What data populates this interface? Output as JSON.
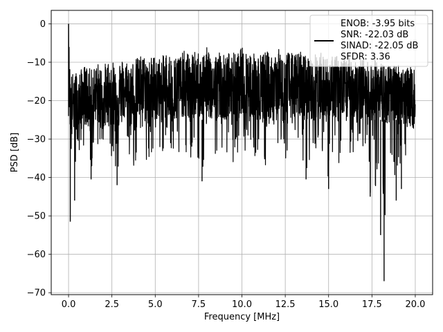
{
  "chart_data": {
    "type": "line",
    "title": "",
    "xlabel": "Frequency [MHz]",
    "ylabel": "PSD [dB]",
    "xlim": [
      -1.0,
      21.0
    ],
    "ylim": [
      -70.5,
      3.5
    ],
    "xticks": [
      0.0,
      2.5,
      5.0,
      7.5,
      10.0,
      12.5,
      15.0,
      17.5,
      20.0
    ],
    "xtick_labels": [
      "0.0",
      "2.5",
      "5.0",
      "7.5",
      "10.0",
      "12.5",
      "15.0",
      "17.5",
      "20.0"
    ],
    "yticks": [
      0,
      -10,
      -20,
      -30,
      -40,
      -50,
      -60,
      -70
    ],
    "ytick_labels": [
      "0",
      "−10",
      "−20",
      "−30",
      "−40",
      "−50",
      "−60",
      "−70"
    ],
    "grid": true,
    "legend_position": "top-right",
    "legend_lines": [
      "ENOB: -3.95 bits",
      "SNR: -22.03 dB",
      "SINAD: -22.05 dB",
      "SFDR: 3.36"
    ],
    "series": [
      {
        "color": "#000000",
        "x": [
          0.0,
          0.05,
          0.1,
          0.2,
          0.35,
          0.55,
          0.7,
          0.9,
          1.1,
          1.3,
          1.6,
          1.9,
          2.2,
          2.5,
          2.8,
          3.2,
          3.5,
          3.9,
          4.2,
          4.6,
          5.0,
          5.3,
          5.7,
          6.0,
          6.3,
          6.7,
          7.0,
          7.4,
          7.7,
          8.0,
          8.3,
          8.7,
          9.0,
          9.4,
          9.7,
          10.0,
          10.4,
          10.7,
          11.0,
          11.4,
          11.7,
          12.0,
          12.4,
          12.7,
          13.0,
          13.4,
          13.7,
          14.0,
          14.4,
          14.7,
          15.0,
          15.4,
          15.7,
          16.0,
          16.4,
          16.7,
          17.0,
          17.4,
          17.7,
          18.0,
          18.2,
          18.5,
          18.9,
          19.2,
          19.6,
          20.0
        ],
        "y_center": [
          0,
          -18,
          -20,
          -22,
          -19,
          -23,
          -20,
          -18,
          -19,
          -21,
          -17,
          -20,
          -19,
          -18,
          -20,
          -17,
          -19,
          -18,
          -16,
          -19,
          -17,
          -18,
          -16,
          -19,
          -17,
          -16,
          -18,
          -16,
          -17,
          -15,
          -18,
          -16,
          -17,
          -16,
          -18,
          -15,
          -17,
          -16,
          -18,
          -16,
          -17,
          -15,
          -18,
          -16,
          -17,
          -16,
          -18,
          -17,
          -16,
          -18,
          -17,
          -16,
          -18,
          -17,
          -16,
          -18,
          -17,
          -19,
          -17,
          -18,
          -19,
          -18,
          -17,
          -19,
          -18,
          -20
        ],
        "y_upper": [
          0,
          -8,
          -12,
          -13,
          -12,
          -13,
          -12,
          -11,
          -11,
          -12,
          -10,
          -11,
          -10,
          -9,
          -10,
          -9,
          -10,
          -9,
          -8,
          -9,
          -8,
          -9,
          -7,
          -9,
          -8,
          -7,
          -8,
          -7,
          -8,
          -6,
          -8,
          -7,
          -8,
          -7,
          -8,
          -6,
          -7,
          -7,
          -8,
          -7,
          -8,
          -6,
          -8,
          -7,
          -8,
          -7,
          -8,
          -9,
          -7,
          -8,
          -9,
          -8,
          -9,
          -8,
          -8,
          -9,
          -9,
          -10,
          -9,
          -10,
          -10,
          -11,
          -10,
          -11,
          -11,
          -12
        ],
        "y_lower": [
          -24,
          -30,
          -51.5,
          -28,
          -46,
          -33,
          -38,
          -31,
          -33,
          -40.5,
          -32,
          -36,
          -31,
          -35,
          -42,
          -34,
          -36,
          -38,
          -33,
          -37,
          -35,
          -33,
          -38,
          -34,
          -35,
          -33,
          -37,
          -34,
          -41,
          -33,
          -36,
          -35,
          -34,
          -38,
          -33,
          -36,
          -33,
          -35,
          -33,
          -38,
          -34,
          -33,
          -38,
          -33,
          -35,
          -34,
          -40.5,
          -35,
          -34,
          -38,
          -43,
          -35,
          -38,
          -34,
          -37,
          -36,
          -37,
          -45,
          -42,
          -55,
          -67,
          -35,
          -46,
          -43,
          -30,
          -24
        ]
      }
    ]
  }
}
